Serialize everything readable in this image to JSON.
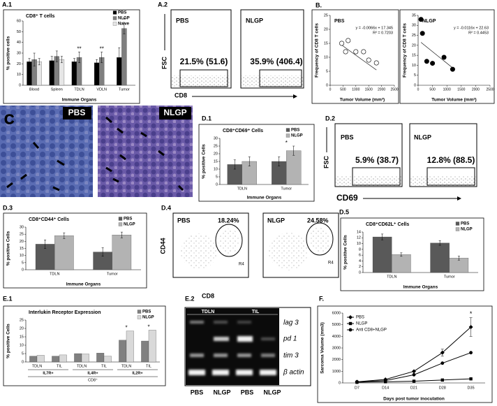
{
  "panel_labels": [
    "A.1",
    "A.2",
    "B.",
    "C",
    "D.1",
    "D.2",
    "D.3",
    "D.4",
    "D.5",
    "E.1",
    "E.2",
    "F."
  ],
  "chart_data": [
    {
      "type": "bar",
      "title": "CD8⁺ T cells",
      "y_label": "% positive cells",
      "x_label": "Immune Organs",
      "categories": [
        "Blood",
        "Spleen",
        "TDLN",
        "VDLN",
        "Tumor"
      ],
      "series": [
        {
          "name": "PBS",
          "color": "#000000",
          "values": [
            22,
            23,
            22,
            21,
            26
          ],
          "errors": [
            3,
            4,
            3,
            3,
            9
          ]
        },
        {
          "name": "NLGP",
          "color": "#7f7f7f",
          "values": [
            24,
            27,
            26,
            26,
            53
          ],
          "errors": [
            6,
            5,
            5,
            5,
            5
          ]
        },
        {
          "name": "Naive",
          "color": "#e6e6e6",
          "values": [
            22,
            24,
            null,
            null,
            null
          ],
          "errors": [
            3,
            3,
            null,
            null,
            null
          ]
        }
      ],
      "significance": [
        null,
        null,
        "**",
        "**",
        "*"
      ],
      "ylim": [
        0,
        60
      ],
      "yticks": [
        0,
        10,
        20,
        30,
        40,
        50,
        60
      ],
      "legend": "upper right"
    },
    {
      "type": "scatter",
      "title": "PBS",
      "x_label": "Tumor Volume (mm³)",
      "y_label": "Frequency of CD8 T cells",
      "x": [
        450,
        600,
        700,
        1000,
        1300,
        1500,
        1800
      ],
      "y": [
        15,
        12,
        16,
        12,
        12,
        9,
        8
      ],
      "marker": "open",
      "color": "#000000",
      "equation": "y = -0.0066x + 17.345",
      "r_squared": "R² = 0.7203",
      "trendline": {
        "slope": -0.0066,
        "intercept": 17.345
      },
      "xlim": [
        0,
        2500
      ],
      "xticks": [
        0,
        500,
        1000,
        1500,
        2000,
        2500
      ],
      "ylim": [
        0,
        25
      ],
      "yticks": [
        0,
        5,
        10,
        15,
        20,
        25
      ]
    },
    {
      "type": "scatter",
      "title": "NLGP",
      "x_label": "Tumor Volume (mm²)",
      "y_label": "Frequency of CD8 T cells",
      "x": [
        100,
        150,
        300,
        500,
        900,
        1200
      ],
      "y": [
        33,
        26,
        12,
        11,
        14,
        8
      ],
      "marker": "filled",
      "color": "#000000",
      "equation": "y = -0.0116x + 22.63",
      "r_squared": "R² = 0.4453",
      "trendline": {
        "slope": -0.0116,
        "intercept": 22.63
      },
      "xlim": [
        0,
        2500
      ],
      "xticks": [
        0,
        500,
        1000,
        1500,
        2000,
        2500
      ],
      "ylim": [
        0,
        35
      ],
      "yticks": [
        0,
        5,
        10,
        15,
        20,
        25,
        30,
        35
      ]
    },
    {
      "type": "bar",
      "title": "CD8⁺CD69⁺ Cells",
      "y_label": "% positive Cells",
      "x_label": "Immune Organs",
      "categories": [
        "TDLN",
        "Tumor"
      ],
      "series": [
        {
          "name": "PBS",
          "color": "#595959",
          "values": [
            13,
            15
          ],
          "errors": [
            3,
            3
          ]
        },
        {
          "name": "NLGP",
          "color": "#b3b3b3",
          "values": [
            15,
            22
          ],
          "errors": [
            3,
            3
          ]
        }
      ],
      "significance": [
        null,
        "*"
      ],
      "ylim": [
        0,
        30
      ],
      "yticks": [
        0,
        5,
        10,
        15,
        20,
        25,
        30
      ],
      "legend": "upper right"
    },
    {
      "type": "bar",
      "title": "CD8⁺CD44⁺ Cells",
      "y_label": "% positive Cells",
      "x_label": "Immune Organs",
      "categories": [
        "TDLN",
        "Tumor"
      ],
      "series": [
        {
          "name": "PBS",
          "color": "#595959",
          "values": [
            18,
            12.5
          ],
          "errors": [
            3,
            3
          ]
        },
        {
          "name": "NLGP",
          "color": "#b3b3b3",
          "values": [
            24,
            24.5
          ],
          "errors": [
            2,
            2
          ]
        }
      ],
      "ylim": [
        0,
        30
      ],
      "yticks": [
        0,
        5,
        10,
        15,
        20,
        25,
        30
      ],
      "legend": "upper right"
    },
    {
      "type": "bar",
      "title": "CD8⁺CD62L⁺ Cells",
      "y_label": "% positive Cells",
      "x_label": "Immune Organs",
      "categories": [
        "TDLN",
        "Tumor"
      ],
      "series": [
        {
          "name": "PBS",
          "color": "#595959",
          "values": [
            12.3,
            10.2
          ],
          "errors": [
            1,
            0.8
          ]
        },
        {
          "name": "NLGP",
          "color": "#b3b3b3",
          "values": [
            6.2,
            5
          ],
          "errors": [
            0.6,
            0.7
          ]
        }
      ],
      "ylim": [
        0,
        14
      ],
      "yticks": [
        0,
        2,
        4,
        6,
        8,
        10,
        12,
        14
      ],
      "legend": "upper right"
    },
    {
      "type": "bar",
      "title": "Interlukin Receptor Expression",
      "y_label": "% positive Cells",
      "categories": [
        "TDLN",
        "TIL",
        "TDLN",
        "TIL",
        "TDLN",
        "TIL"
      ],
      "groups": [
        "IL7R+",
        "IL4R+",
        "IL2R+"
      ],
      "group_label": "CD8⁺",
      "series": [
        {
          "name": "PBS",
          "color": "#808080",
          "values": [
            3.5,
            3.5,
            5,
            5.3,
            13,
            12.5
          ]
        },
        {
          "name": "NLGP",
          "color": "#d9d9d9",
          "values": [
            4,
            4.2,
            4.8,
            3.5,
            18.5,
            19
          ]
        }
      ],
      "significance": [
        null,
        null,
        null,
        null,
        "*",
        "*"
      ],
      "ylim": [
        0,
        25
      ],
      "yticks": [
        0,
        5,
        10,
        15,
        20,
        25
      ],
      "legend": "upper right"
    },
    {
      "type": "line",
      "y_label": "Sarcoma Volume (mm3)",
      "x_label": "Days post tumor inoculation",
      "categories": [
        "D7",
        "D14",
        "D21",
        "D28",
        "D35"
      ],
      "series": [
        {
          "name": "PBS",
          "color": "#000000",
          "marker": "diamond",
          "values": [
            100,
            300,
            1000,
            2600,
            4800
          ],
          "errors": [
            null,
            null,
            null,
            300,
            800
          ]
        },
        {
          "name": "NLGP",
          "color": "#000000",
          "marker": "square",
          "values": [
            50,
            100,
            150,
            250,
            350
          ]
        },
        {
          "name": "Anti CD8+NLGP",
          "color": "#000000",
          "marker": "circle",
          "values": [
            100,
            200,
            700,
            1700,
            2600
          ]
        }
      ],
      "significance": [
        null,
        null,
        null,
        null,
        "*"
      ],
      "ylim": [
        0,
        6000
      ],
      "yticks": [
        0,
        1000,
        2000,
        3000,
        4000,
        5000,
        6000
      ],
      "legend": "upper left"
    }
  ],
  "flow_plots": [
    {
      "y_label": "FSC",
      "x_label": "CD8",
      "plots": [
        {
          "title": "PBS",
          "gate_label": "21.5% (51.6)"
        },
        {
          "title": "NLGP",
          "gate_label": "35.9% (406.4)"
        }
      ]
    },
    {
      "y_label": "FSC",
      "x_label": "CD69",
      "plots": [
        {
          "title": "PBS",
          "gate_label": "5.9% (38.7)"
        },
        {
          "title": "NLGP",
          "gate_label": "12.8% (88.5)"
        }
      ]
    },
    {
      "y_label": "CD44",
      "x_label": "CD8",
      "plots": [
        {
          "title": "PBS",
          "gate_label": "18.24%",
          "region": "R4"
        },
        {
          "title": "NLGP",
          "gate_label": "24.58%",
          "region": "R4"
        }
      ]
    }
  ],
  "micrographs": [
    {
      "title": "PBS"
    },
    {
      "title": "NLGP"
    }
  ],
  "gel": {
    "columns": [
      "TDLN",
      "TIL"
    ],
    "bands": [
      "lag 3",
      "pd 1",
      "tim 3",
      "β actin"
    ],
    "lanes": [
      "PBS",
      "NLGP",
      "PBS",
      "NLGP"
    ]
  }
}
